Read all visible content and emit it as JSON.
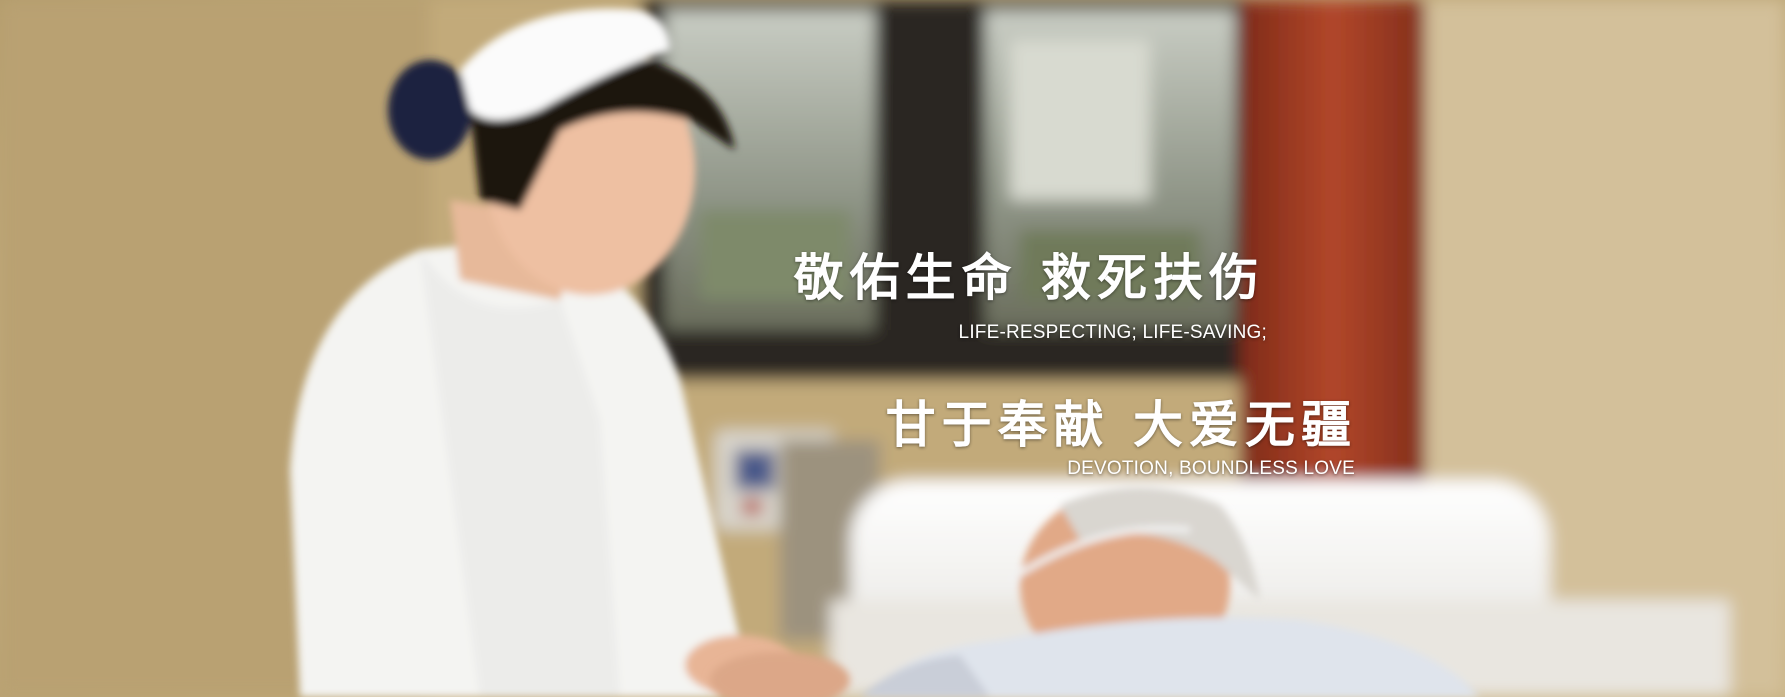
{
  "banner": {
    "line1_cn": "敬佑生命   救死扶伤",
    "line1_en": "LIFE-RESPECTING; LIFE-SAVING;",
    "line2_cn": "甘于奉献 大爱无疆",
    "line2_en": "DEVOTION, BOUNDLESS LOVE"
  },
  "colors": {
    "wall": "#cbb587",
    "curtain": "#9a3a22",
    "window_frame": "#2b2520",
    "uniform": "#f4f4f2",
    "text": "#ffffff"
  }
}
